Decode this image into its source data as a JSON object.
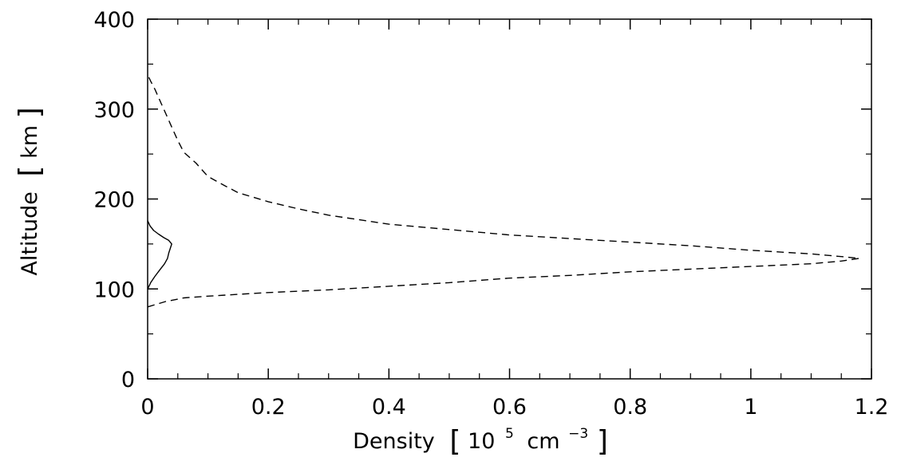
{
  "chart_data": {
    "type": "line",
    "title": "",
    "xlabel": {
      "prefix": "Density",
      "open_bracket": "[",
      "base": "10",
      "base_exp": "5",
      "unit": "cm",
      "unit_exp": "−3",
      "close_bracket": "]"
    },
    "ylabel": {
      "prefix": "Altitude",
      "open_bracket": "[",
      "unit": "km",
      "close_bracket": "]"
    },
    "xlim": [
      0,
      1.2
    ],
    "ylim": [
      0,
      400
    ],
    "x_ticks": [
      0,
      0.2,
      0.4,
      0.6,
      0.8,
      1,
      1.2
    ],
    "x_tick_labels": [
      "0",
      "0.2",
      "0.4",
      "0.6",
      "0.8",
      "1",
      "1.2"
    ],
    "y_ticks": [
      0,
      100,
      200,
      300,
      400
    ],
    "y_tick_labels": [
      "0",
      "100",
      "200",
      "300",
      "400"
    ],
    "grid": false,
    "legend": "none",
    "series": [
      {
        "style": "solid",
        "color": "#000000",
        "points": [
          [
            0.0,
            100
          ],
          [
            0.005,
            107
          ],
          [
            0.012,
            114
          ],
          [
            0.02,
            121
          ],
          [
            0.028,
            128
          ],
          [
            0.033,
            134
          ],
          [
            0.035,
            140
          ],
          [
            0.038,
            146
          ],
          [
            0.04,
            150
          ],
          [
            0.035,
            154
          ],
          [
            0.027,
            157
          ],
          [
            0.018,
            161
          ],
          [
            0.01,
            165
          ],
          [
            0.004,
            170
          ],
          [
            0.0,
            176
          ]
        ]
      },
      {
        "style": "dashed",
        "color": "#000000",
        "points": [
          [
            0.0,
            80
          ],
          [
            0.01,
            82
          ],
          [
            0.03,
            86
          ],
          [
            0.06,
            90
          ],
          [
            0.1,
            92
          ],
          [
            0.2,
            96
          ],
          [
            0.3,
            99
          ],
          [
            0.4,
            103
          ],
          [
            0.5,
            107
          ],
          [
            0.6,
            112
          ],
          [
            0.7,
            115
          ],
          [
            0.8,
            119
          ],
          [
            0.9,
            122
          ],
          [
            1.0,
            125
          ],
          [
            1.1,
            128
          ],
          [
            1.15,
            131
          ],
          [
            1.18,
            134
          ],
          [
            1.15,
            136
          ],
          [
            1.1,
            139
          ],
          [
            1.0,
            143
          ],
          [
            0.9,
            148
          ],
          [
            0.8,
            152
          ],
          [
            0.7,
            156
          ],
          [
            0.6,
            160
          ],
          [
            0.5,
            166
          ],
          [
            0.4,
            172
          ],
          [
            0.35,
            177
          ],
          [
            0.3,
            182
          ],
          [
            0.25,
            189
          ],
          [
            0.2,
            197
          ],
          [
            0.15,
            207
          ],
          [
            0.13,
            214
          ],
          [
            0.1,
            225
          ],
          [
            0.08,
            240
          ],
          [
            0.06,
            252
          ],
          [
            0.05,
            265
          ],
          [
            0.04,
            280
          ],
          [
            0.03,
            295
          ],
          [
            0.02,
            310
          ],
          [
            0.012,
            322
          ],
          [
            0.005,
            331
          ],
          [
            0.0,
            338
          ]
        ]
      }
    ]
  }
}
